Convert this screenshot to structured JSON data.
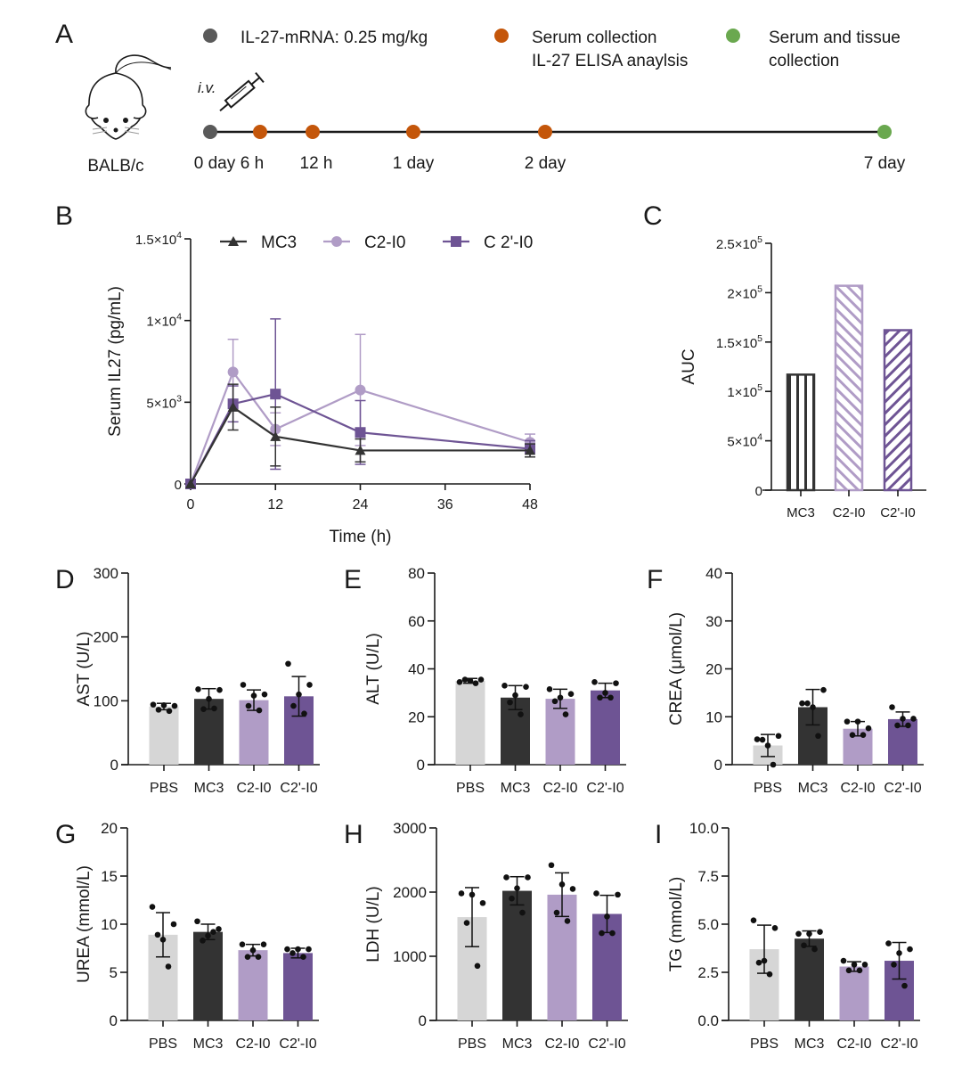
{
  "colors": {
    "PBS": "#d6d6d6",
    "MC3": "#333333",
    "C2-I0": "#b09cc6",
    "C2'-I0": "#6e5494",
    "dose_dot": "#5a5a5a",
    "serum_dot": "#c4560a",
    "tissue_dot": "#6aa84f",
    "axis": "#1a1a1a"
  },
  "panel_a": {
    "letter": "A",
    "legend": [
      {
        "lines": [
          "IL-27-mRNA: 0.25 mg/kg"
        ],
        "color_key": "dose_dot"
      },
      {
        "lines": [
          "Serum collection",
          "IL-27 ELISA anaylsis"
        ],
        "color_key": "serum_dot"
      },
      {
        "lines": [
          "Serum and tissue",
          "collection"
        ],
        "color_key": "tissue_dot"
      }
    ],
    "route": "i.v.",
    "strain": "BALB/c",
    "timeline": [
      {
        "label": "0 day",
        "color_key": "dose_dot"
      },
      {
        "label": "6 h",
        "color_key": "serum_dot"
      },
      {
        "label": "12 h",
        "color_key": "serum_dot"
      },
      {
        "label": "1 day",
        "color_key": "serum_dot"
      },
      {
        "label": "2 day",
        "color_key": "serum_dot"
      },
      {
        "label": "7 day",
        "color_key": "tissue_dot"
      }
    ]
  },
  "chart_data": [
    {
      "panel": "B",
      "type": "line",
      "title": "",
      "xlabel": "Time (h)",
      "ylabel": "Serum IL27 (pg/mL)",
      "x": [
        0,
        6,
        12,
        24,
        48
      ],
      "xticks": [
        0,
        12,
        24,
        36,
        48
      ],
      "xlim": [
        0,
        48
      ],
      "ylim": [
        0,
        15000
      ],
      "yticks": [
        {
          "value": 0,
          "mant": "0",
          "exp": ""
        },
        {
          "value": 5000,
          "mant": "5×10",
          "exp": "3"
        },
        {
          "value": 10000,
          "mant": "1×10",
          "exp": "4"
        },
        {
          "value": 15000,
          "mant": "1.5×10",
          "exp": "4"
        }
      ],
      "legend_position": "top",
      "series": [
        {
          "name": "MC3",
          "marker": "triangle",
          "values": [
            0,
            4700,
            2900,
            2050,
            2050
          ],
          "err": [
            0,
            1400,
            1800,
            700,
            400
          ]
        },
        {
          "name": "C2-I0",
          "marker": "circle",
          "values": [
            0,
            6850,
            3350,
            5750,
            2550
          ],
          "err": [
            0,
            2000,
            1000,
            3400,
            500
          ]
        },
        {
          "name": "C2'-I0",
          "marker": "square",
          "values": [
            0,
            4900,
            5500,
            3150,
            2150
          ],
          "err": [
            0,
            1100,
            4600,
            1950,
            500
          ]
        }
      ],
      "legend_label_C2p": "C 2'-I0"
    },
    {
      "panel": "C",
      "type": "bar",
      "title": "",
      "xlabel": "",
      "ylabel": "AUC",
      "categories": [
        "MC3",
        "C2-I0",
        "C2'-I0"
      ],
      "values": [
        117000,
        207000,
        162000
      ],
      "patterns": [
        "vertical",
        "diag-down",
        "diag-up"
      ],
      "ylim": [
        0,
        250000
      ],
      "yticks": [
        {
          "value": 0,
          "mant": "0",
          "exp": ""
        },
        {
          "value": 50000,
          "mant": "5×10",
          "exp": "4"
        },
        {
          "value": 100000,
          "mant": "1×10",
          "exp": "5"
        },
        {
          "value": 150000,
          "mant": "1.5×10",
          "exp": "5"
        },
        {
          "value": 200000,
          "mant": "2×10",
          "exp": "5"
        },
        {
          "value": 250000,
          "mant": "2.5×10",
          "exp": "5"
        }
      ]
    },
    {
      "panel": "D",
      "type": "bar",
      "ylabel": "AST (U/L)",
      "categories": [
        "PBS",
        "MC3",
        "C2-I0",
        "C2'-I0"
      ],
      "values": [
        91,
        103,
        101,
        107
      ],
      "err": [
        5,
        16,
        16,
        31
      ],
      "points": [
        [
          94,
          92,
          93,
          86,
          84
        ],
        [
          118,
          117,
          103,
          87,
          88
        ],
        [
          125,
          110,
          108,
          92,
          85
        ],
        [
          158,
          125,
          110,
          92,
          80
        ]
      ],
      "ylim": [
        0,
        300
      ],
      "yticks": [
        0,
        100,
        200,
        300
      ]
    },
    {
      "panel": "E",
      "type": "bar",
      "ylabel": "ALT (U/L)",
      "categories": [
        "PBS",
        "MC3",
        "C2-I0",
        "C2'-I0"
      ],
      "values": [
        35,
        28,
        27.5,
        31
      ],
      "err": [
        1,
        5,
        4,
        3
      ],
      "points": [
        [
          34.5,
          35.5,
          35,
          35.5,
          34
        ],
        [
          33,
          32.5,
          29,
          26,
          21
        ],
        [
          31.5,
          29.5,
          28,
          26.5,
          21
        ],
        [
          34.5,
          34,
          30,
          28,
          28
        ]
      ],
      "ylim": [
        0,
        80
      ],
      "yticks": [
        0,
        20,
        40,
        60,
        80
      ]
    },
    {
      "panel": "F",
      "type": "bar",
      "ylabel": "CREA (μmol/L)",
      "categories": [
        "PBS",
        "MC3",
        "C2-I0",
        "C2'-I0"
      ],
      "values": [
        4,
        12,
        7.5,
        9.5
      ],
      "err": [
        2.3,
        3.7,
        1.5,
        1.5
      ],
      "points": [
        [
          5.3,
          6,
          4,
          5.2,
          0
        ],
        [
          12.8,
          15.6,
          12,
          12.8,
          6
        ],
        [
          9,
          7.6,
          9,
          6.2,
          6.2
        ],
        [
          12,
          9.6,
          9.6,
          8.2,
          8.2
        ]
      ],
      "ylim": [
        0,
        40
      ],
      "yticks": [
        0,
        10,
        20,
        30,
        40
      ]
    },
    {
      "panel": "G",
      "type": "bar",
      "ylabel": "UREA (mmol/L)",
      "categories": [
        "PBS",
        "MC3",
        "C2-I0",
        "C2'-I0"
      ],
      "values": [
        8.9,
        9.2,
        7.3,
        7.0
      ],
      "err": [
        2.3,
        0.8,
        0.6,
        0.5
      ],
      "points": [
        [
          11.8,
          10,
          8.4,
          8.9,
          5.6
        ],
        [
          10.3,
          9.5,
          8.8,
          8.3,
          9.2
        ],
        [
          7.9,
          7.9,
          7.3,
          6.6,
          6.6
        ],
        [
          7.4,
          7.4,
          7.4,
          7.0,
          6.6
        ]
      ],
      "ylim": [
        0,
        20
      ],
      "yticks": [
        0,
        5,
        10,
        15,
        20
      ]
    },
    {
      "panel": "H",
      "type": "bar",
      "ylabel": "LDH (U/L)",
      "categories": [
        "PBS",
        "MC3",
        "C2-I0",
        "C2'-I0"
      ],
      "values": [
        1610,
        2020,
        1960,
        1660
      ],
      "err": [
        460,
        220,
        340,
        290
      ],
      "points": [
        [
          1980,
          1830,
          1960,
          1520,
          850
        ],
        [
          2230,
          2230,
          2060,
          1900,
          1680
        ],
        [
          2420,
          2050,
          2120,
          1680,
          1550
        ],
        [
          1980,
          1960,
          1620,
          1360,
          1360
        ]
      ],
      "ylim": [
        0,
        3000
      ],
      "yticks": [
        0,
        1000,
        2000,
        3000
      ]
    },
    {
      "panel": "I",
      "type": "bar",
      "ylabel": "TG (mmol/L)",
      "categories": [
        "PBS",
        "MC3",
        "C2-I0",
        "C2'-I0"
      ],
      "values": [
        3.7,
        4.25,
        2.8,
        3.1
      ],
      "err": [
        1.25,
        0.4,
        0.25,
        0.95
      ],
      "points": [
        [
          5.2,
          4.8,
          3.1,
          3.0,
          2.4
        ],
        [
          4.5,
          4.6,
          4.5,
          3.9,
          3.7
        ],
        [
          3.1,
          2.9,
          2.9,
          2.6,
          2.6
        ],
        [
          4.0,
          3.7,
          3.5,
          2.9,
          1.8
        ]
      ],
      "ylim": [
        0,
        10
      ],
      "yticks": [
        "0.0",
        "2.5",
        "5.0",
        "7.5",
        "10.0"
      ]
    }
  ]
}
